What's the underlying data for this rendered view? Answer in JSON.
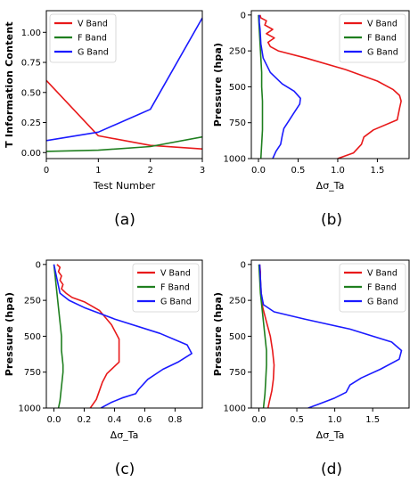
{
  "chart_data": [
    {
      "id": "a",
      "type": "line",
      "caption": "(a)",
      "title": "",
      "xlabel": "Test Number",
      "ylabel": "T Information Content",
      "x": [
        0,
        1,
        2,
        3
      ],
      "xlim": [
        0,
        3
      ],
      "ylim": [
        -0.05,
        1.18
      ],
      "xticks": [
        0,
        1,
        2,
        3
      ],
      "yticks": [
        0.0,
        0.25,
        0.5,
        0.75,
        1.0
      ],
      "ytick_labels": [
        "0.00",
        "0.25",
        "0.50",
        "0.75",
        "1.00"
      ],
      "legend_position": "top-left",
      "series": [
        {
          "name": "V Band",
          "color": "#e8191a",
          "values": [
            0.6,
            0.14,
            0.06,
            0.03
          ]
        },
        {
          "name": "F Band",
          "color": "#1f7f1f",
          "values": [
            0.01,
            0.02,
            0.05,
            0.13
          ]
        },
        {
          "name": "G Band",
          "color": "#1a1aff",
          "values": [
            0.1,
            0.17,
            0.36,
            1.12
          ]
        }
      ]
    },
    {
      "id": "b",
      "type": "line",
      "caption": "(b)",
      "title": "",
      "xlabel": "Δσ_Ta",
      "ylabel": "Pressure (hpa)",
      "y_inverted": true,
      "xlim": [
        -0.09,
        1.9
      ],
      "ylim": [
        1000,
        -30
      ],
      "xticks": [
        0.0,
        0.5,
        1.0,
        1.5
      ],
      "xtick_labels": [
        "0.0",
        "0.5",
        "1.0",
        "1.5"
      ],
      "yticks": [
        0,
        250,
        500,
        750,
        1000
      ],
      "legend_position": "top-right",
      "series": [
        {
          "name": "V Band",
          "color": "#e8191a",
          "x": [
            0.02,
            0.03,
            0.1,
            0.08,
            0.18,
            0.1,
            0.2,
            0.12,
            0.15,
            0.25,
            0.6,
            1.1,
            1.5,
            1.7,
            1.78,
            1.8,
            1.78,
            1.75,
            1.45,
            1.33,
            1.3,
            1.2,
            1.0
          ],
          "y": [
            0,
            20,
            40,
            70,
            100,
            130,
            160,
            190,
            220,
            250,
            300,
            380,
            460,
            520,
            560,
            600,
            650,
            730,
            800,
            850,
            900,
            960,
            1000
          ]
        },
        {
          "name": "F Band",
          "color": "#1f7f1f",
          "x": [
            0.0,
            0.01,
            0.02,
            0.03,
            0.04,
            0.04,
            0.05,
            0.05,
            0.05,
            0.04,
            0.03
          ],
          "y": [
            0,
            100,
            200,
            300,
            400,
            500,
            600,
            700,
            800,
            900,
            1000
          ]
        },
        {
          "name": "G Band",
          "color": "#1a1aff",
          "x": [
            0.01,
            0.01,
            0.02,
            0.03,
            0.06,
            0.15,
            0.3,
            0.45,
            0.53,
            0.52,
            0.45,
            0.38,
            0.32,
            0.3,
            0.28,
            0.22,
            0.18
          ],
          "y": [
            0,
            50,
            100,
            200,
            300,
            400,
            480,
            530,
            580,
            620,
            680,
            740,
            790,
            840,
            900,
            950,
            1000
          ]
        }
      ]
    },
    {
      "id": "c",
      "type": "line",
      "caption": "(c)",
      "title": "",
      "xlabel": "Δσ_Ta",
      "ylabel": "Pressure (hpa)",
      "y_inverted": true,
      "xlim": [
        -0.05,
        0.98
      ],
      "ylim": [
        1000,
        -30
      ],
      "xticks": [
        0.0,
        0.2,
        0.4,
        0.6,
        0.8
      ],
      "xtick_labels": [
        "0.0",
        "0.2",
        "0.4",
        "0.6",
        "0.8"
      ],
      "yticks": [
        0,
        250,
        500,
        750,
        1000
      ],
      "legend_position": "top-right",
      "series": [
        {
          "name": "V Band",
          "color": "#e8191a",
          "x": [
            0.02,
            0.04,
            0.03,
            0.05,
            0.04,
            0.06,
            0.05,
            0.08,
            0.12,
            0.2,
            0.3,
            0.38,
            0.43,
            0.43,
            0.43,
            0.35,
            0.32,
            0.3,
            0.28,
            0.24
          ],
          "y": [
            0,
            20,
            50,
            80,
            110,
            140,
            170,
            200,
            230,
            260,
            320,
            420,
            520,
            600,
            680,
            760,
            820,
            880,
            940,
            1000
          ]
        },
        {
          "name": "F Band",
          "color": "#1f7f1f",
          "x": [
            0.0,
            0.01,
            0.02,
            0.03,
            0.04,
            0.05,
            0.05,
            0.06,
            0.06,
            0.05,
            0.04,
            0.03
          ],
          "y": [
            0,
            100,
            200,
            300,
            400,
            500,
            600,
            700,
            750,
            850,
            950,
            1000
          ]
        },
        {
          "name": "G Band",
          "color": "#1a1aff",
          "x": [
            0.0,
            0.01,
            0.02,
            0.04,
            0.1,
            0.2,
            0.4,
            0.7,
            0.88,
            0.91,
            0.82,
            0.72,
            0.62,
            0.56,
            0.54,
            0.45,
            0.38,
            0.31
          ],
          "y": [
            0,
            50,
            100,
            200,
            250,
            300,
            380,
            480,
            560,
            620,
            680,
            730,
            800,
            870,
            900,
            930,
            960,
            1000
          ]
        }
      ]
    },
    {
      "id": "d",
      "type": "line",
      "caption": "(d)",
      "title": "",
      "xlabel": "Δσ_Ta",
      "ylabel": "Pressure (hpa)",
      "y_inverted": true,
      "xlim": [
        -0.1,
        1.98
      ],
      "ylim": [
        1000,
        -30
      ],
      "xticks": [
        0.0,
        0.5,
        1.0,
        1.5
      ],
      "xtick_labels": [
        "0.0",
        "0.5",
        "1.0",
        "1.5"
      ],
      "yticks": [
        0,
        250,
        500,
        750,
        1000
      ],
      "legend_position": "top-right",
      "series": [
        {
          "name": "V Band",
          "color": "#e8191a",
          "x": [
            0.01,
            0.02,
            0.02,
            0.03,
            0.05,
            0.1,
            0.15,
            0.18,
            0.2,
            0.19,
            0.17,
            0.14,
            0.12
          ],
          "y": [
            0,
            50,
            100,
            200,
            300,
            400,
            500,
            600,
            700,
            800,
            880,
            950,
            1000
          ]
        },
        {
          "name": "F Band",
          "color": "#1f7f1f",
          "x": [
            0.0,
            0.01,
            0.02,
            0.04,
            0.06,
            0.08,
            0.1,
            0.1,
            0.09,
            0.08,
            0.06
          ],
          "y": [
            0,
            100,
            200,
            300,
            400,
            500,
            600,
            700,
            800,
            900,
            1000
          ]
        },
        {
          "name": "G Band",
          "color": "#1a1aff",
          "x": [
            0.01,
            0.02,
            0.03,
            0.06,
            0.2,
            0.6,
            1.2,
            1.75,
            1.88,
            1.85,
            1.6,
            1.35,
            1.2,
            1.15,
            1.0,
            0.8,
            0.65
          ],
          "y": [
            0,
            100,
            200,
            280,
            330,
            380,
            450,
            540,
            600,
            660,
            730,
            790,
            840,
            890,
            930,
            970,
            1000
          ]
        }
      ]
    }
  ]
}
